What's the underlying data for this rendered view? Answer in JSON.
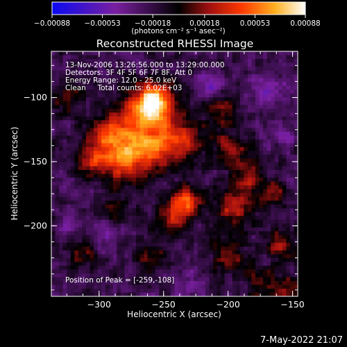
{
  "chart_data": {
    "type": "heatmap",
    "title": "Reconstructed RHESSI Image",
    "xlabel": "Heliocentric X (arcsec)",
    "ylabel": "Heliocentric Y (arcsec)",
    "xlim": [
      -337,
      -146
    ],
    "ylim": [
      -255,
      -64
    ],
    "x_ticks": [
      -300,
      -250,
      -200,
      -150
    ],
    "x_tick_labels": [
      "−300",
      "−250",
      "−200",
      "−150"
    ],
    "y_ticks": [
      -100,
      -150,
      -200
    ],
    "y_tick_labels": [
      "−100",
      "−150",
      "−200"
    ],
    "colorbar": {
      "ticks": [
        -0.00088,
        -0.00053,
        -0.00018,
        0.00018,
        0.00053,
        0.00088
      ],
      "tick_labels": [
        "−0.00088",
        "−0.00053",
        "−0.00018",
        "0.00018",
        "0.00053",
        "0.00088"
      ],
      "unit_label": "(photons cm⁻² s⁻¹ asec⁻²)",
      "colors": [
        "#0a0af0",
        "#7a1fa0",
        "#000000",
        "#a01010",
        "#ff3a00",
        "#ffb020",
        "#ffffff"
      ]
    },
    "peak": {
      "x": -259,
      "y": -108
    },
    "sources": [
      {
        "x": -257,
        "y": -103,
        "sigma": 10,
        "amp": 0.00088
      },
      {
        "x": -268,
        "y": -118,
        "sigma": 16,
        "amp": 0.00055
      },
      {
        "x": -292,
        "y": -130,
        "sigma": 11,
        "amp": 0.0005
      },
      {
        "x": -305,
        "y": -150,
        "sigma": 9,
        "amp": 0.00045
      },
      {
        "x": -282,
        "y": -150,
        "sigma": 10,
        "amp": 0.00055
      },
      {
        "x": -262,
        "y": -143,
        "sigma": 12,
        "amp": 0.0005
      },
      {
        "x": -238,
        "y": -135,
        "sigma": 12,
        "amp": 0.0005
      },
      {
        "x": -232,
        "y": -182,
        "sigma": 9,
        "amp": 0.0006
      },
      {
        "x": -245,
        "y": -195,
        "sigma": 9,
        "amp": 0.0004
      },
      {
        "x": -195,
        "y": -185,
        "sigma": 11,
        "amp": 0.00045
      },
      {
        "x": -185,
        "y": -160,
        "sigma": 9,
        "amp": 0.0004
      },
      {
        "x": -200,
        "y": -140,
        "sigma": 9,
        "amp": 0.00035
      },
      {
        "x": -165,
        "y": -175,
        "sigma": 7,
        "amp": 0.0004
      },
      {
        "x": -160,
        "y": -215,
        "sigma": 8,
        "amp": 0.00035
      },
      {
        "x": -292,
        "y": -185,
        "sigma": 10,
        "amp": 0.00035
      },
      {
        "x": -312,
        "y": -220,
        "sigma": 8,
        "amp": 0.00032
      },
      {
        "x": -262,
        "y": -225,
        "sigma": 9,
        "amp": 0.0003
      },
      {
        "x": -200,
        "y": -225,
        "sigma": 10,
        "amp": 0.00035
      },
      {
        "x": -175,
        "y": -245,
        "sigma": 8,
        "amp": 0.0003
      },
      {
        "x": -155,
        "y": -250,
        "sigma": 7,
        "amp": 0.00035
      },
      {
        "x": -325,
        "y": -100,
        "sigma": 9,
        "amp": 0.0003
      },
      {
        "x": -205,
        "y": -110,
        "sigma": 9,
        "amp": 0.00032
      },
      {
        "x": -215,
        "y": -90,
        "sigma": 8,
        "amp": -0.00025
      },
      {
        "x": -295,
        "y": -205,
        "sigma": 8,
        "amp": -0.0003
      },
      {
        "x": -325,
        "y": -200,
        "sigma": 7,
        "amp": -0.00025
      },
      {
        "x": -300,
        "y": -178,
        "sigma": 8,
        "amp": -0.0002
      },
      {
        "x": -170,
        "y": -95,
        "sigma": 10,
        "amp": -0.0002
      },
      {
        "x": -230,
        "y": -245,
        "sigma": 8,
        "amp": -0.0002
      },
      {
        "x": -155,
        "y": -130,
        "sigma": 8,
        "amp": -0.00018
      }
    ]
  },
  "annotations": {
    "time_range": "13-Nov-2006 13:26:56.000 to 13:29:00.000",
    "detectors": "Detectors: 3F 4F 5F 6F 7F 8F, Att 0",
    "energy": "Energy Range: 12.0 - 25.0 keV",
    "clean": "Clean     Total counts: 6.02E+03",
    "peak": "Position of Peak = [-259,-108]"
  },
  "footer": {
    "date": "7-May-2022 21:07"
  }
}
